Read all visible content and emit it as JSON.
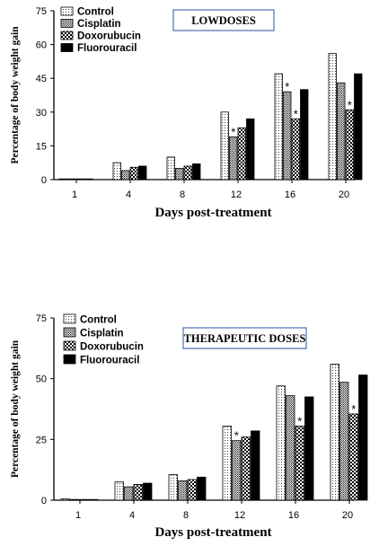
{
  "chart_data": [
    {
      "type": "bar",
      "title": "LOWDOSES",
      "xlabel": "Days post-treatment",
      "ylabel": "Percentage of body weight gain",
      "ylim": [
        0,
        75
      ],
      "yticks": [
        "0",
        "15",
        "30",
        "45",
        "60",
        "75"
      ],
      "categories": [
        "1",
        "4",
        "8",
        "12",
        "16",
        "20"
      ],
      "series": [
        {
          "name": "Control",
          "pattern": "dots",
          "values": [
            0.3,
            7.5,
            10,
            30,
            47,
            56
          ]
        },
        {
          "name": "Cisplatin",
          "pattern": "dense",
          "values": [
            0.3,
            4,
            5,
            19,
            39,
            43
          ]
        },
        {
          "name": "Doxorubucin",
          "pattern": "checker",
          "values": [
            0.3,
            5.5,
            6,
            23,
            27,
            31
          ]
        },
        {
          "name": "Fluorouracil",
          "pattern": "solid",
          "values": [
            0.3,
            6,
            7,
            27,
            40,
            47
          ]
        }
      ],
      "annotations": [
        {
          "text": "*",
          "series": 1,
          "category": 3
        },
        {
          "text": "*",
          "series": 1,
          "category": 4
        },
        {
          "text": "*",
          "series": 2,
          "category": 4
        },
        {
          "text": "*",
          "series": 2,
          "category": 5
        }
      ]
    },
    {
      "type": "bar",
      "title": "THERAPEUTIC DOSES",
      "xlabel": "Days post-treatment",
      "ylabel": "Percentage of body weight gain",
      "ylim": [
        0,
        75
      ],
      "yticks": [
        "0",
        "25",
        "50",
        "75"
      ],
      "categories": [
        "1",
        "4",
        "8",
        "12",
        "16",
        "20"
      ],
      "series": [
        {
          "name": "Control",
          "pattern": "dots",
          "values": [
            0.5,
            7.5,
            10.5,
            30.5,
            47,
            56
          ]
        },
        {
          "name": "Cisplatin",
          "pattern": "dense",
          "values": [
            0.3,
            5.5,
            8,
            24.5,
            43,
            48.5
          ]
        },
        {
          "name": "Doxorubucin",
          "pattern": "checker",
          "values": [
            0.3,
            6.5,
            8.5,
            26,
            30.5,
            35.5
          ]
        },
        {
          "name": "Fluorouracil",
          "pattern": "solid",
          "values": [
            0.3,
            7,
            9.5,
            28.5,
            42.5,
            51.5
          ]
        }
      ],
      "annotations": [
        {
          "text": "*",
          "series": 1,
          "category": 3
        },
        {
          "text": "*",
          "series": 2,
          "category": 4
        },
        {
          "text": "*",
          "series": 2,
          "category": 5
        }
      ]
    }
  ]
}
